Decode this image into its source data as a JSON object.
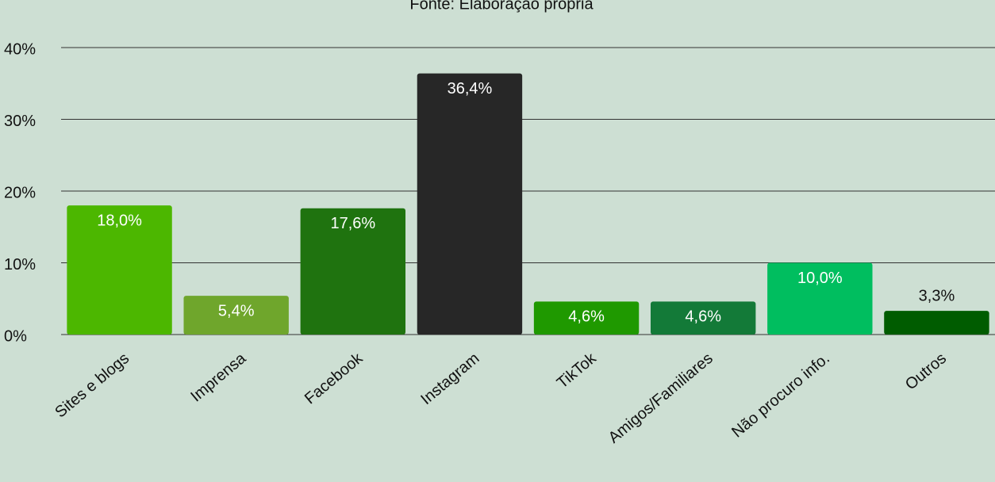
{
  "chart_data": {
    "type": "bar",
    "subtitle": "Fonte: Elaboração própria",
    "categories": [
      "Sites e blogs",
      "Imprensa",
      "Facebook",
      "Instagram",
      "TikTok",
      "Amigos/Familiares",
      "Não procuro info.",
      "Outros"
    ],
    "values": [
      18.0,
      5.4,
      17.6,
      36.4,
      4.6,
      4.6,
      10.0,
      3.3
    ],
    "value_labels": [
      "18,0%",
      "5,4%",
      "17,6%",
      "36,4%",
      "4,6%",
      "4,6%",
      "10,0%",
      "3,3%"
    ],
    "colors": [
      "#4cb700",
      "#6fa62c",
      "#1f730f",
      "#272727",
      "#1f9900",
      "#137a38",
      "#00be5f",
      "#005c00"
    ],
    "ylim": [
      0,
      40
    ],
    "yticks": [
      {
        "value": 0,
        "label": "0%"
      },
      {
        "value": 10,
        "label": "10%"
      },
      {
        "value": 20,
        "label": "20%"
      },
      {
        "value": 30,
        "label": "30%"
      },
      {
        "value": 40,
        "label": "40%"
      }
    ],
    "grid": true
  }
}
